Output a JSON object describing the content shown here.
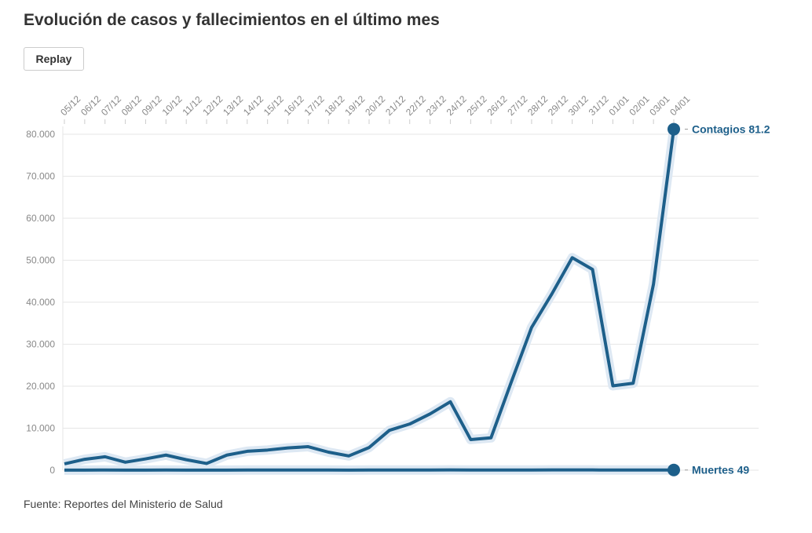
{
  "title": "Evolución de casos y fallecimientos en el último mes",
  "button": "Replay",
  "source": "Fuente: Reportes del Ministerio de Salud",
  "chart_data": {
    "type": "line",
    "categories": [
      "05/12",
      "06/12",
      "07/12",
      "08/12",
      "09/12",
      "10/12",
      "11/12",
      "12/12",
      "13/12",
      "14/12",
      "15/12",
      "16/12",
      "17/12",
      "18/12",
      "19/12",
      "20/12",
      "21/12",
      "22/12",
      "23/12",
      "24/12",
      "25/12",
      "26/12",
      "27/12",
      "28/12",
      "29/12",
      "30/12",
      "31/12",
      "01/01",
      "02/01",
      "03/01",
      "04/01"
    ],
    "series": [
      {
        "name": "Contagios",
        "color": "#1d5f8a",
        "end_label": "Contagios 81.2",
        "values": [
          1500,
          2600,
          3200,
          1900,
          2700,
          3600,
          2500,
          1600,
          3600,
          4500,
          4800,
          5300,
          5600,
          4300,
          3400,
          5400,
          9500,
          11000,
          13400,
          16300,
          7300,
          7700,
          21000,
          34000,
          42000,
          50600,
          47800,
          20100,
          20700,
          44300,
          81200
        ]
      },
      {
        "name": "Muertes",
        "color": "#1d5f8a",
        "end_label": "Muertes 49",
        "values": [
          30,
          35,
          40,
          30,
          35,
          40,
          30,
          25,
          35,
          40,
          40,
          45,
          45,
          40,
          35,
          45,
          50,
          55,
          50,
          60,
          40,
          45,
          50,
          55,
          60,
          65,
          60,
          40,
          45,
          55,
          49
        ]
      }
    ],
    "ylim": [
      0,
      80000
    ],
    "yticks": [
      0,
      {
        "value": 10000,
        "label": "10.000"
      },
      {
        "value": 20000,
        "label": "20.000"
      },
      {
        "value": 30000,
        "label": "30.000"
      },
      {
        "value": 40000,
        "label": "40.000"
      },
      {
        "value": 50000,
        "label": "50.000"
      },
      {
        "value": 60000,
        "label": "60.000"
      },
      {
        "value": 70000,
        "label": "70.000"
      },
      {
        "value": 80000,
        "label": "80.000"
      }
    ],
    "grid": true
  }
}
